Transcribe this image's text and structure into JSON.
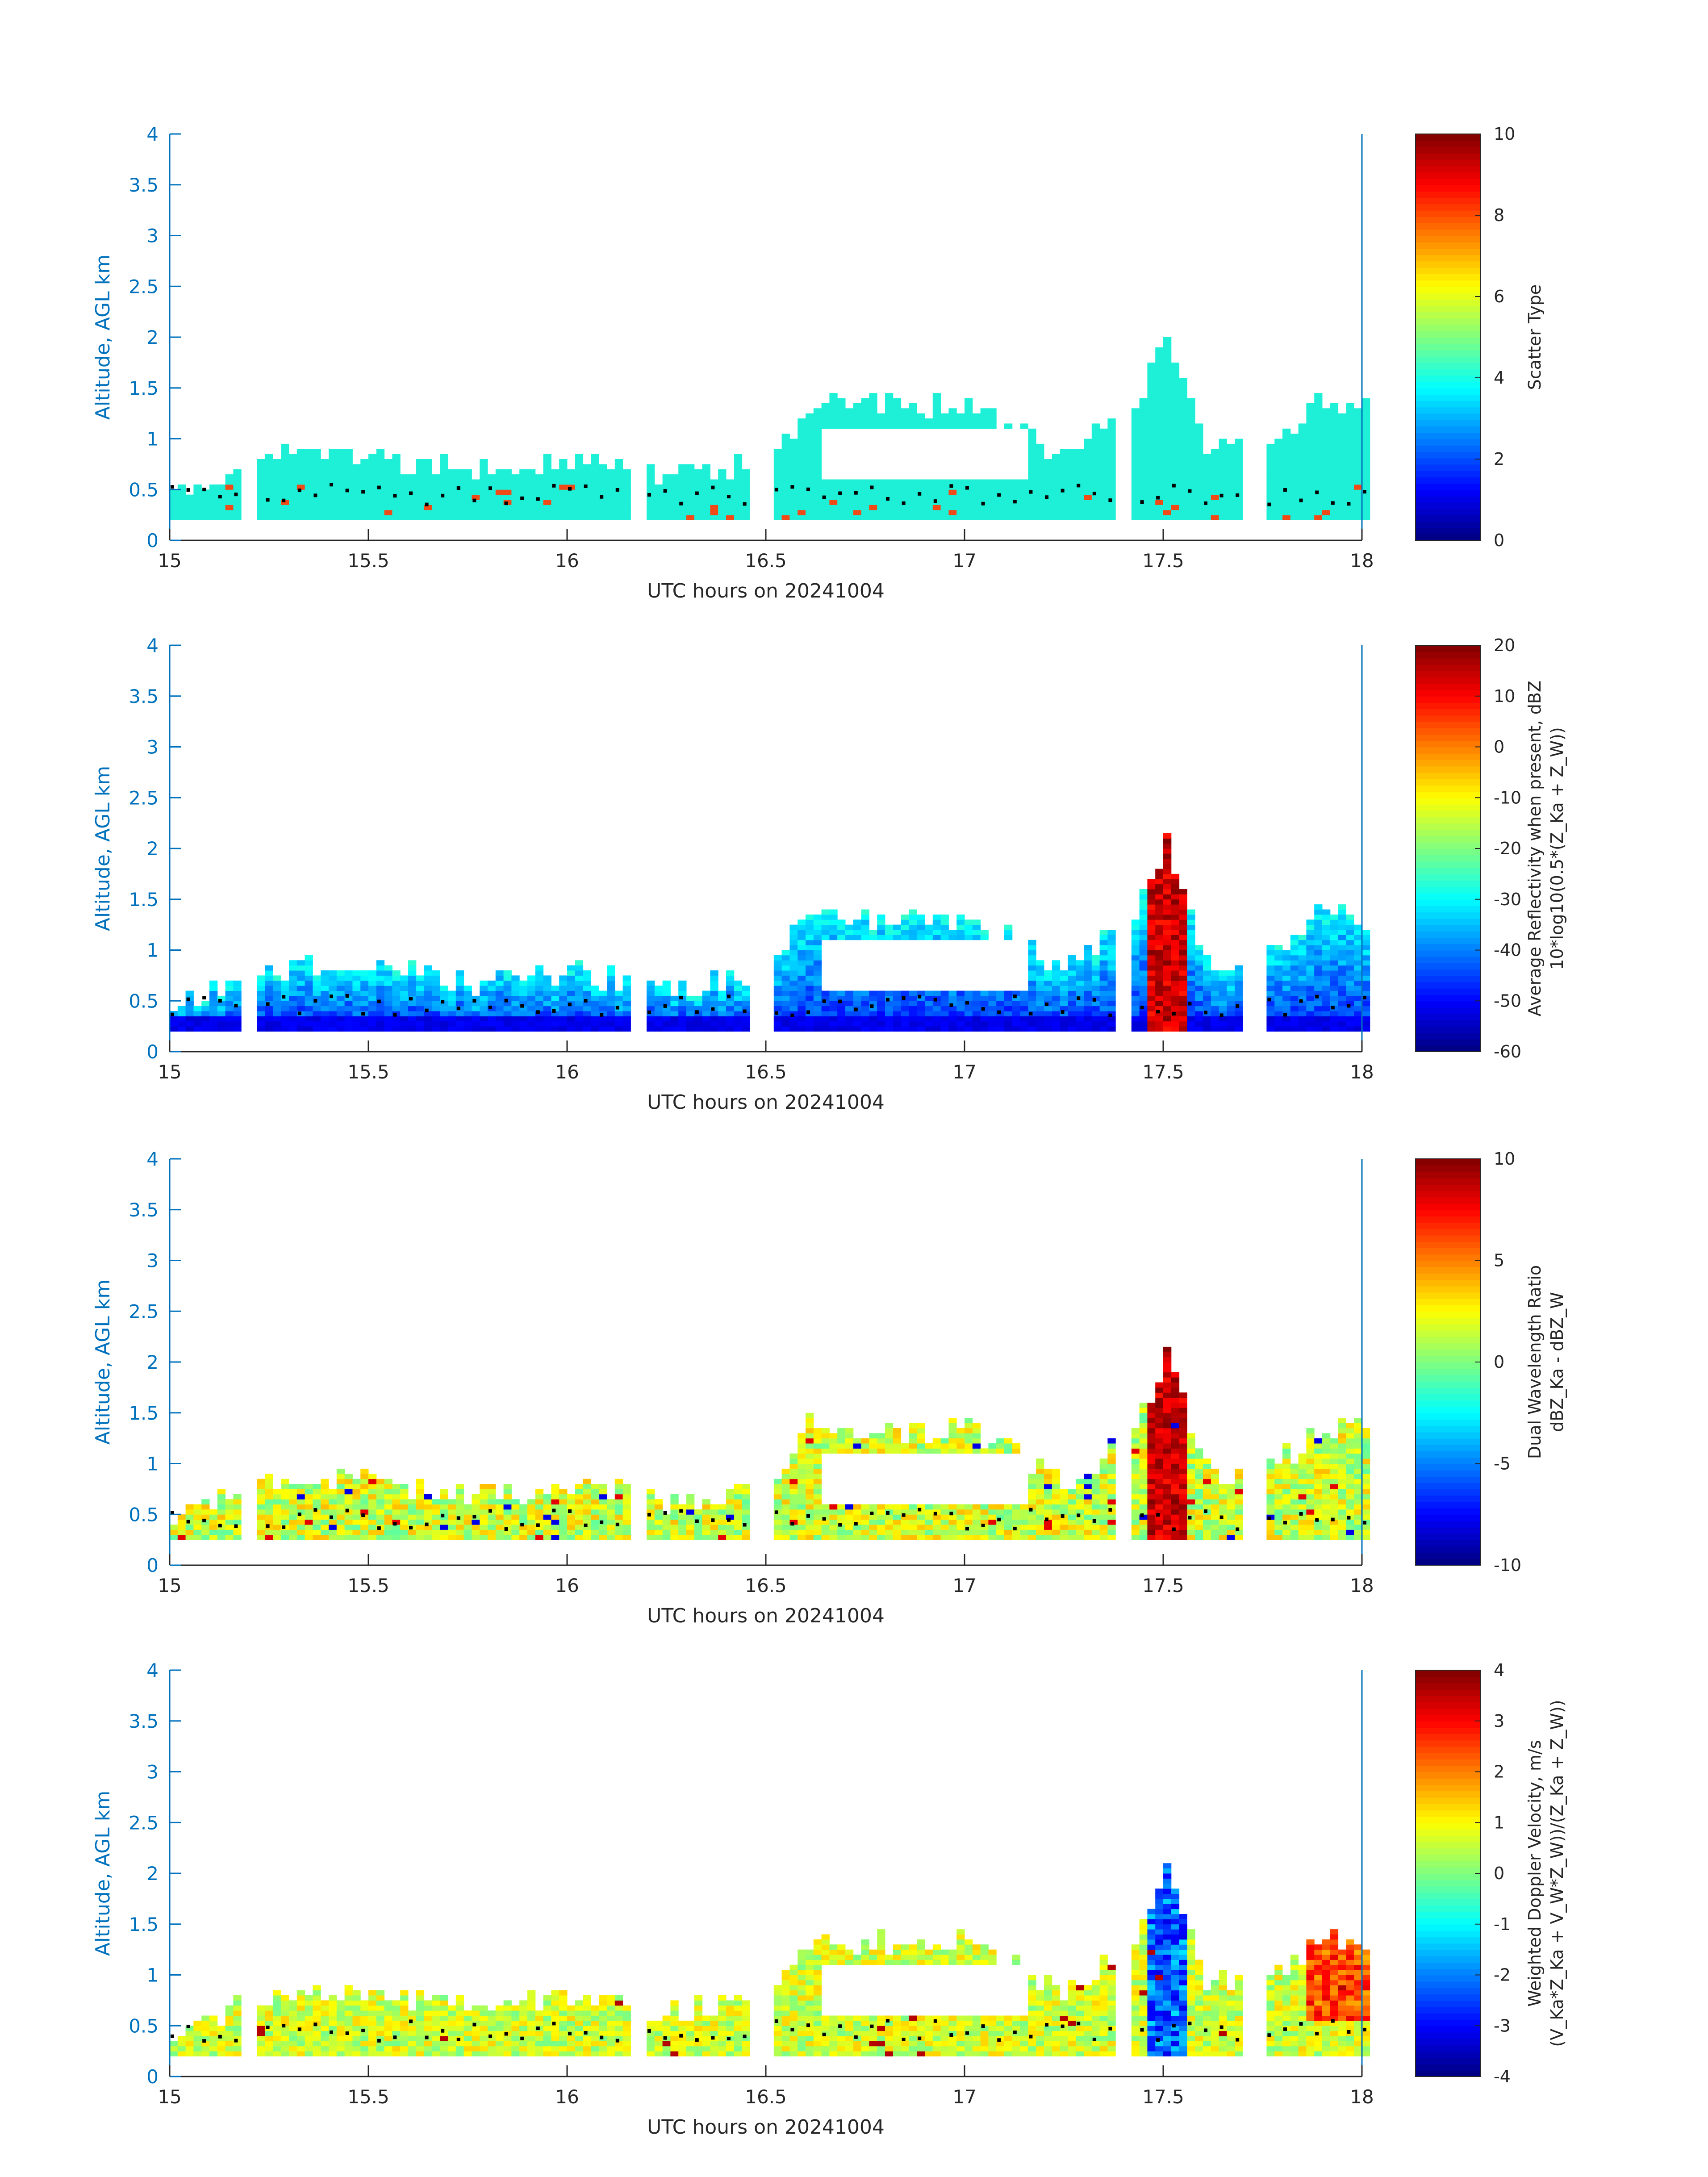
{
  "chart_data": [
    {
      "type": "heatmap",
      "xlabel": "UTC hours on 20241004",
      "ylabel": "Altitude, AGL km",
      "xlim": [
        15,
        18
      ],
      "ylim": [
        0,
        4
      ],
      "xticks": [
        "15",
        "15.5",
        "16",
        "16.5",
        "17",
        "17.5",
        "18"
      ],
      "yticks": [
        "0",
        "0.5",
        "1",
        "1.5",
        "2",
        "2.5",
        "3",
        "3.5",
        "4"
      ],
      "colorbar": {
        "label_lines": [
          "Scatter Type"
        ],
        "range": [
          0,
          10
        ],
        "ticks": [
          "0",
          "2",
          "4",
          "6",
          "8",
          "10"
        ]
      },
      "dominant_value_description_color": "#1ef0d8"
    },
    {
      "type": "heatmap",
      "xlabel": "UTC hours on 20241004",
      "ylabel": "Altitude, AGL km",
      "xlim": [
        15,
        18
      ],
      "ylim": [
        0,
        4
      ],
      "xticks": [
        "15",
        "15.5",
        "16",
        "16.5",
        "17",
        "17.5",
        "18"
      ],
      "yticks": [
        "0",
        "0.5",
        "1",
        "1.5",
        "2",
        "2.5",
        "3",
        "3.5",
        "4"
      ],
      "colorbar": {
        "label_lines": [
          "Average Reflectivity when present, dBZ",
          "10*log10(0.5*(Z_Ka + Z_W))"
        ],
        "range": [
          -60,
          20
        ],
        "ticks": [
          "-60",
          "-50",
          "-40",
          "-30",
          "-20",
          "-10",
          "0",
          "10",
          "20"
        ]
      }
    },
    {
      "type": "heatmap",
      "xlabel": "UTC hours on 20241004",
      "ylabel": "Altitude, AGL km",
      "xlim": [
        15,
        18
      ],
      "ylim": [
        0,
        4
      ],
      "xticks": [
        "15",
        "15.5",
        "16",
        "16.5",
        "17",
        "17.5",
        "18"
      ],
      "yticks": [
        "0",
        "0.5",
        "1",
        "1.5",
        "2",
        "2.5",
        "3",
        "3.5",
        "4"
      ],
      "colorbar": {
        "label_lines": [
          "Dual Wavelength Ratio",
          "dBZ_Ka - dBZ_W"
        ],
        "range": [
          -10,
          10
        ],
        "ticks": [
          "-10",
          "-5",
          "0",
          "5",
          "10"
        ]
      }
    },
    {
      "type": "heatmap",
      "xlabel": "UTC hours on 20241004",
      "ylabel": "Altitude, AGL km",
      "xlim": [
        15,
        18
      ],
      "ylim": [
        0,
        4
      ],
      "xticks": [
        "15",
        "15.5",
        "16",
        "16.5",
        "17",
        "17.5",
        "18"
      ],
      "yticks": [
        "0",
        "0.5",
        "1",
        "1.5",
        "2",
        "2.5",
        "3",
        "3.5",
        "4"
      ],
      "colorbar": {
        "label_lines": [
          "Weighted Doppler Velocity, m/s",
          "(V_Ka*Z_Ka + V_W*Z_W))/(Z_Ka + Z_W))"
        ],
        "range": [
          -4,
          4
        ],
        "ticks": [
          "-4",
          "-3",
          "-2",
          "-1",
          "0",
          "1",
          "2",
          "3",
          "4"
        ]
      }
    }
  ],
  "echo_profile": {
    "description_note": "",
    "x": [
      15.0,
      15.25,
      15.5,
      15.75,
      16.0,
      16.25,
      16.5,
      16.6,
      16.75,
      17.0,
      17.25,
      17.4,
      17.5,
      17.6,
      17.75,
      17.9,
      18.0
    ],
    "top_km": [
      0.45,
      0.8,
      0.8,
      0.65,
      0.75,
      0.6,
      0.75,
      1.35,
      1.3,
      1.3,
      0.8,
      1.2,
      2.0,
      0.9,
      0.9,
      1.35,
      1.3
    ],
    "base_km": [
      0.2,
      0.2,
      0.2,
      0.2,
      0.2,
      0.2,
      0.2,
      0.2,
      0.2,
      0.2,
      0.2,
      0.2,
      0.2,
      0.2,
      0.2,
      0.2,
      0.2
    ]
  }
}
